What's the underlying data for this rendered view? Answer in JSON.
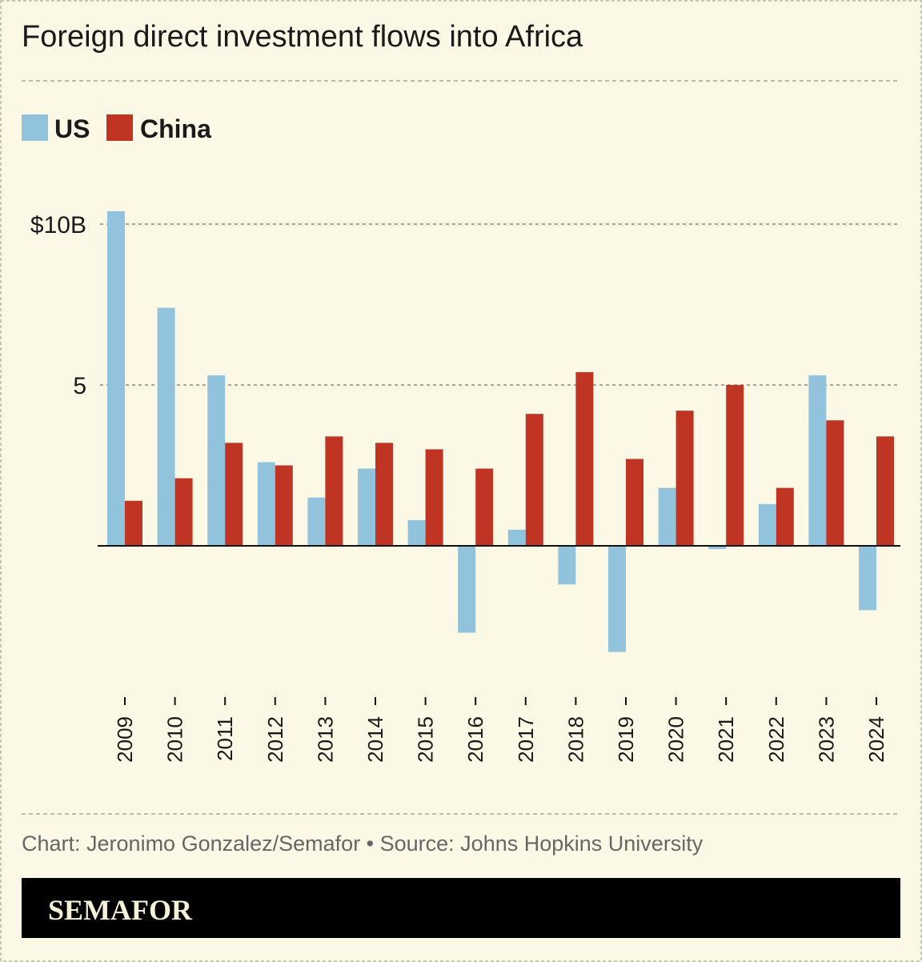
{
  "title": "Foreign direct investment flows into Africa",
  "source": "Chart: Jeronimo Gonzalez/Semafor • Source: Johns Hopkins University",
  "brand": "SEMAFOR",
  "colors": {
    "background": "#fbf9e6",
    "us": "#92c3dc",
    "china": "#c03423",
    "brand_bar": "#000000"
  },
  "chart_data": {
    "type": "bar",
    "title": "Foreign direct investment flows into Africa",
    "xlabel": "",
    "ylabel": "",
    "categories": [
      "2009",
      "2010",
      "2011",
      "2012",
      "2013",
      "2014",
      "2015",
      "2016",
      "2017",
      "2018",
      "2019",
      "2020",
      "2021",
      "2022",
      "2023",
      "2024"
    ],
    "series": [
      {
        "name": "US",
        "color": "#92c3dc",
        "values": [
          10.4,
          7.4,
          5.3,
          2.6,
          1.5,
          2.4,
          0.8,
          -2.7,
          0.5,
          -1.2,
          -3.3,
          1.8,
          -0.1,
          1.3,
          5.3,
          -2.0
        ]
      },
      {
        "name": "China",
        "color": "#c03423",
        "values": [
          1.4,
          2.1,
          3.2,
          2.5,
          3.4,
          3.2,
          3.0,
          2.4,
          4.1,
          5.4,
          2.7,
          4.2,
          5.0,
          1.8,
          3.9,
          3.4
        ]
      }
    ],
    "yticks": [
      {
        "value": 10,
        "label": "$10B"
      },
      {
        "value": 5,
        "label": "5"
      }
    ],
    "ylim": [
      -4,
      10.5
    ],
    "grid": true,
    "legend": "top-left"
  }
}
